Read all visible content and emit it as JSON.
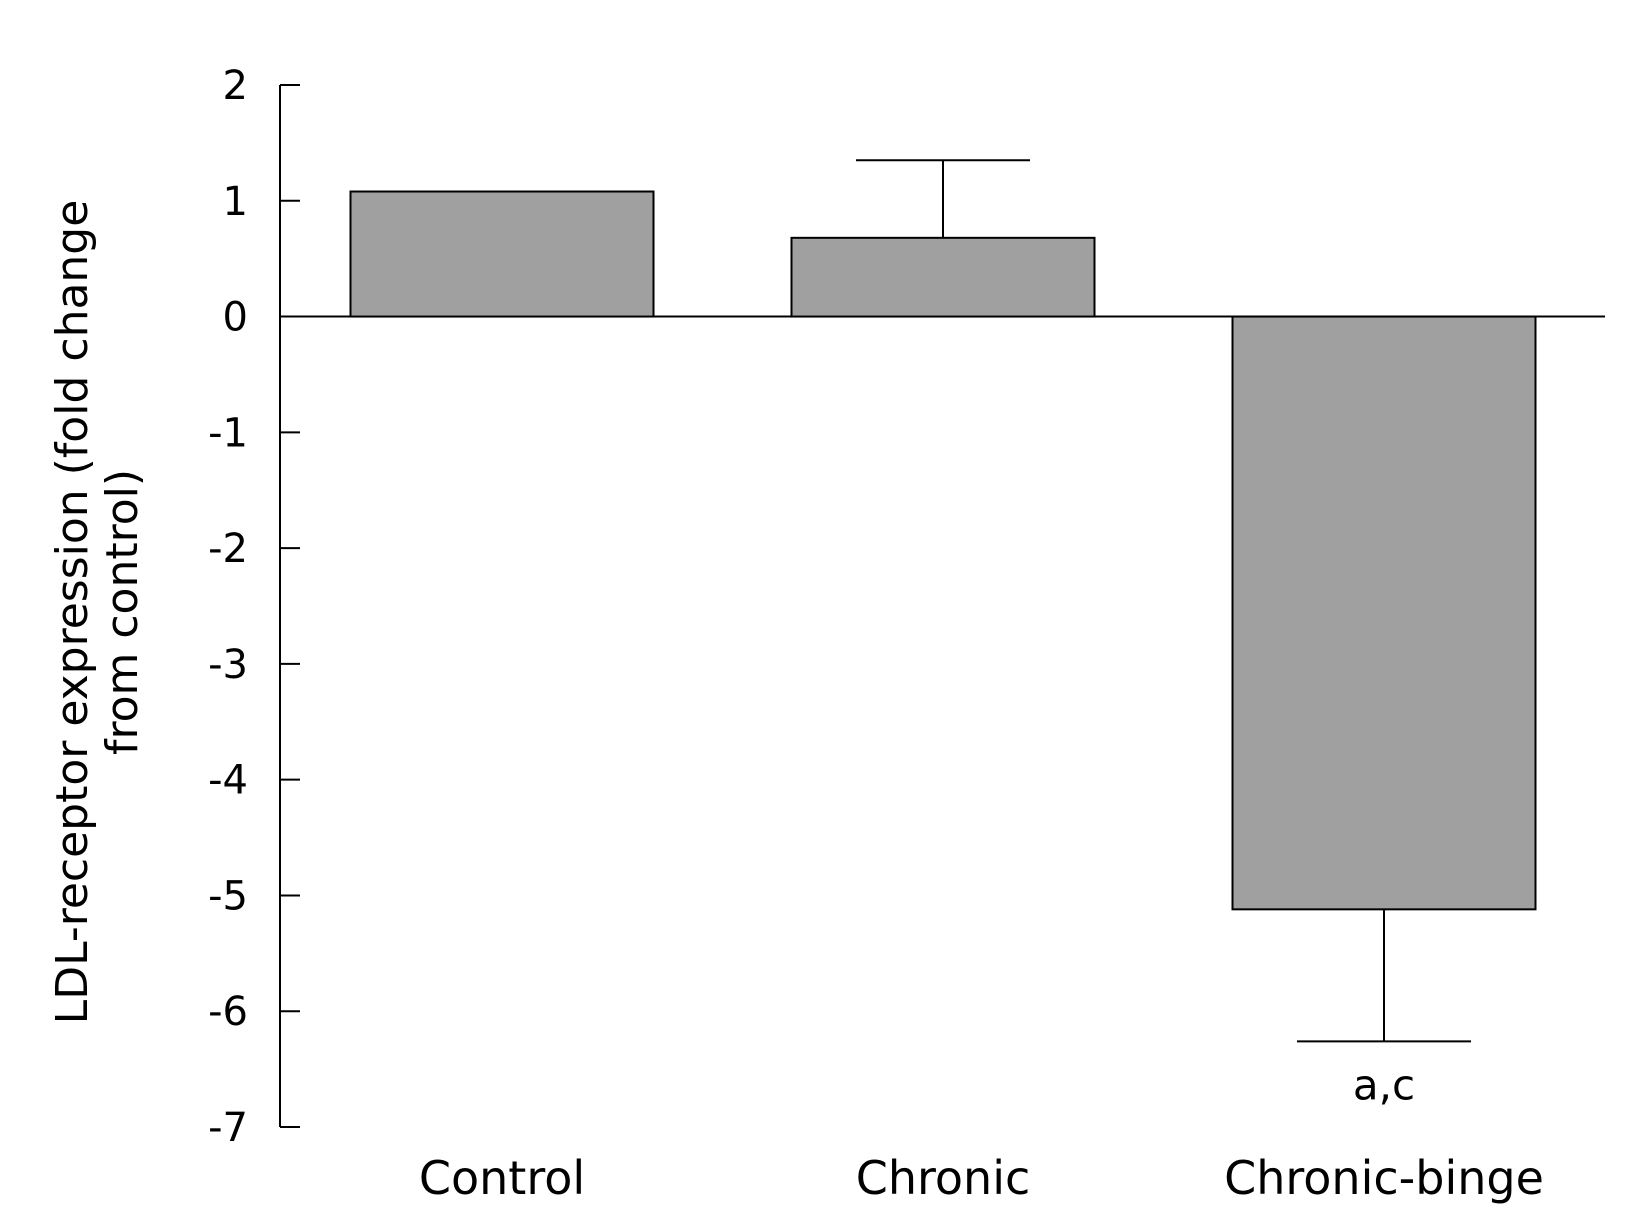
{
  "chart_data": {
    "type": "bar",
    "categories": [
      "Control",
      "Chronic",
      "Chronic-binge"
    ],
    "values": [
      1.08,
      0.68,
      -5.12
    ],
    "error_bars": [
      null,
      0.67,
      1.14
    ],
    "ylabel_lines": [
      "LDL-receptor expression (fold change",
      "from control)"
    ],
    "ylim": [
      -7,
      2
    ],
    "yticks": [
      2,
      1,
      0,
      -1,
      -2,
      -3,
      -4,
      -5,
      -6,
      -7
    ],
    "annotations": [
      {
        "category": "Chronic-binge",
        "text": "a,c"
      }
    ],
    "grid": false,
    "colors": {
      "bar_fill": "#a0a0a0",
      "bar_stroke": "#000000",
      "axis": "#000000"
    }
  }
}
